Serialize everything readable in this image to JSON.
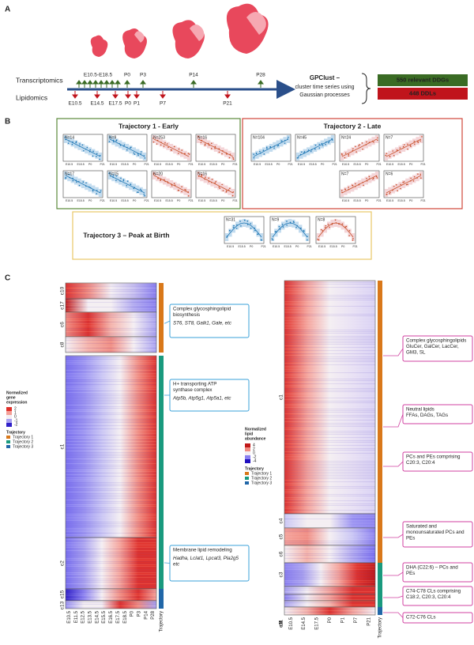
{
  "panel_labels": [
    "A",
    "B",
    "C"
  ],
  "timeline": {
    "rows": [
      "Transcriptomics",
      "Lipidomics"
    ],
    "transcript_times": [
      "E10.5-E18.5",
      "P0",
      "P3",
      "P14",
      "P28"
    ],
    "lipid_times": [
      "E10.5",
      "E14.5",
      "E17.5",
      "P0",
      "P1",
      "P7",
      "P21"
    ],
    "method": [
      "GPClust –",
      "cluster time series using",
      "Gaussian processes"
    ],
    "outputs": [
      "550 relevant DDGs",
      "448 DDLs"
    ]
  },
  "trajectories": [
    {
      "title": "Trajectory 1 - Early",
      "plots": [
        "N=14",
        "N=9",
        "N=253",
        "N=16",
        "N=17",
        "N=15",
        "N=20",
        "N=16"
      ]
    },
    {
      "title": "Trajectory 2 - Late",
      "plots": [
        "N=104",
        "N=45",
        "N=24",
        "N=7",
        "N=7",
        "N=6"
      ]
    },
    {
      "title": "Trajectory 3 – Peak at Birth",
      "plots": [
        "N=31",
        "N=9",
        "N=8"
      ]
    }
  ],
  "mini_axis": [
    "E10.5",
    "E15.5",
    "P0",
    "P21"
  ],
  "gene_heatmap": {
    "clusters": [
      "c10",
      "c17",
      "c6",
      "c8",
      "c1",
      "c2",
      "c15",
      "c13"
    ],
    "columns": [
      "E10.5",
      "E11.5",
      "E12.5",
      "E13.5",
      "E14.5",
      "E15.5",
      "E16.5",
      "E17.5",
      "E18.5",
      "P0",
      "P3",
      "P14",
      "P28",
      "Trajectory"
    ],
    "legend_title": [
      "Normalized",
      "gene",
      "expression"
    ],
    "legend_ticks": [
      "2",
      "1",
      "0",
      "-1",
      "-2"
    ],
    "trajectory_title": "Trajectory",
    "trajectory_items": [
      "Trajectory 1",
      "Trajectory 2",
      "Trajectory 3"
    ],
    "annotations": [
      {
        "lines": [
          "Complex glycosphingolipid",
          "biosynthesis"
        ],
        "italic": [
          "ST6, ST8, Galk1, Gale, etc"
        ]
      },
      {
        "lines": [
          "H+ transporting ATP",
          "synthase complex"
        ],
        "italic": [
          "Atp5b, Atp5g1, Atp5a1, etc"
        ]
      },
      {
        "lines": [
          "Membrane lipid remodeling"
        ],
        "italic": [
          "Hadha, Lclat1, Lpcat3, Pla2g5",
          "etc"
        ]
      }
    ]
  },
  "lipid_heatmap": {
    "clusters": [
      "c1",
      "c4",
      "c5",
      "c6",
      "c3",
      "c8",
      "c9",
      "c11",
      "c7"
    ],
    "columns": [
      "E10.5",
      "E14.5",
      "E17.5",
      "P0",
      "P1",
      "P7",
      "P21",
      "Trajectory"
    ],
    "legend_title": [
      "Normalized",
      "lipid",
      "abundance"
    ],
    "legend_ticks": [
      "4",
      "2",
      "0",
      "-2",
      "-4"
    ],
    "trajectory_title": "Trajectory",
    "trajectory_items": [
      "Trajectory 1",
      "Trajectory 2",
      "Trajectory 3"
    ],
    "annotations": [
      {
        "lines": [
          "Complex glycosphingolipids",
          "GluCer, GalCer, LacCer,",
          "GM3, SL"
        ]
      },
      {
        "lines": [
          "Neutral lipids",
          "FFAs, DAGs, TAGs"
        ]
      },
      {
        "lines": [
          "PCs and PEs comprising",
          "C20:3, C20:4"
        ]
      },
      {
        "lines": [
          "Saturated and",
          "monounsaturated PCs and",
          "PEs"
        ]
      },
      {
        "lines": [
          "DHA (C22:6) – PCs and",
          "PEs"
        ]
      },
      {
        "lines": [
          "C74-C78 CLs comprising",
          "C18:2, C20:3, C20:4"
        ]
      },
      {
        "lines": [
          "C72-C76 CLs"
        ]
      }
    ]
  }
}
